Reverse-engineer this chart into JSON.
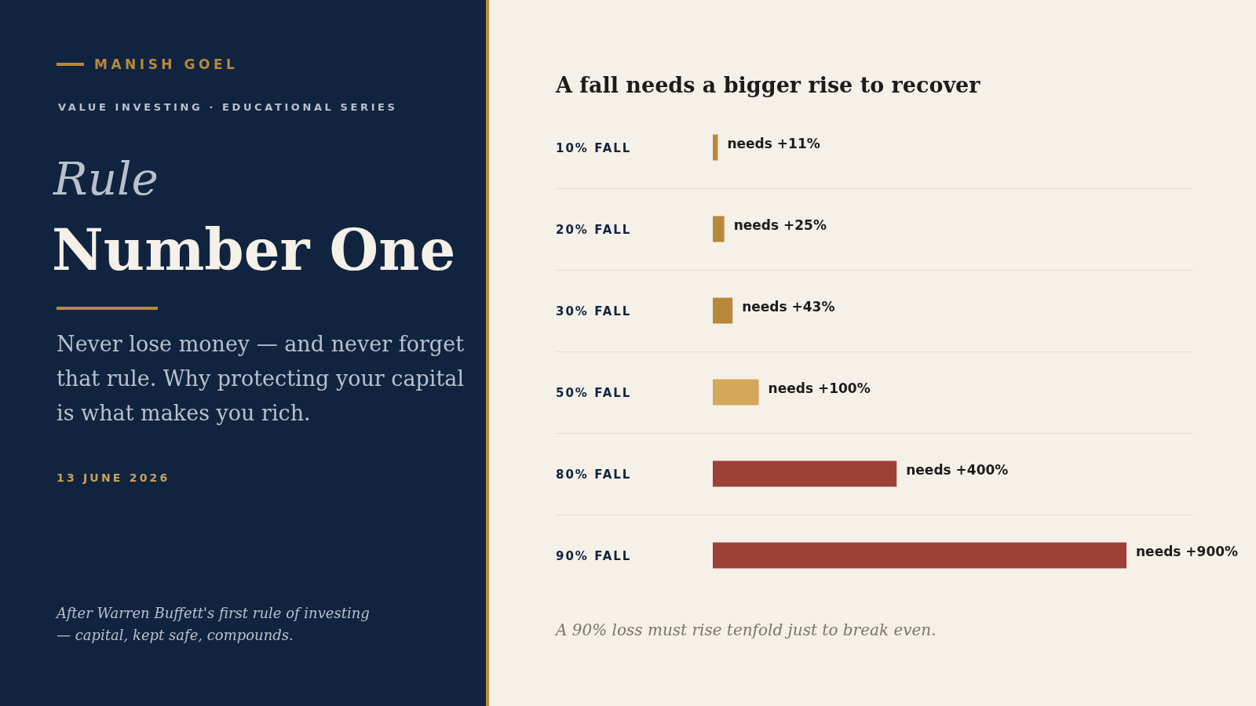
{
  "chart_data": [
    {
      "type": "other",
      "annotations": [
        "MANISH GOEL",
        "VALUE INVESTING  ·  EDUCATIONAL SERIES",
        "Rule",
        "Number One",
        "Never lose money — and never forget that rule. Why protecting your capital is what makes you rich.",
        "13 JUNE 2026",
        "After Warren Buffett's first rule of investing — capital, kept safe, compounds."
      ]
    },
    {
      "type": "bar",
      "orientation": "horizontal",
      "title": "A fall needs a bigger rise to recover",
      "categories": [
        "10% FALL",
        "20% FALL",
        "30% FALL",
        "50% FALL",
        "80% FALL",
        "90% FALL"
      ],
      "values": [
        11,
        25,
        43,
        100,
        400,
        900
      ],
      "colors": [
        "#b8893a",
        "#b8893a",
        "#b8893a",
        "#d4a85a",
        "#9c4038",
        "#9c4038"
      ],
      "value_labels": [
        "needs +11%",
        "needs +25%",
        "needs +43%",
        "needs +100%",
        "needs +400%",
        "needs +900%"
      ],
      "annotations": [
        "A 90% loss must rise tenfold just to break even."
      ]
    }
  ]
}
